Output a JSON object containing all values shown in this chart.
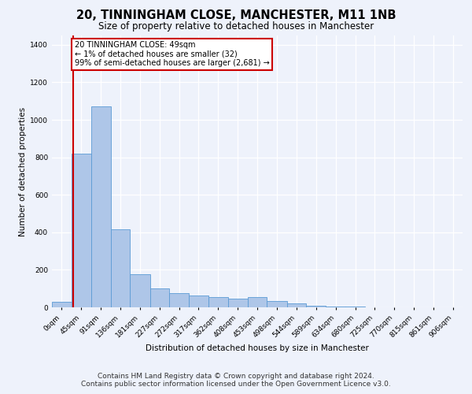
{
  "title": "20, TINNINGHAM CLOSE, MANCHESTER, M11 1NB",
  "subtitle": "Size of property relative to detached houses in Manchester",
  "xlabel": "Distribution of detached houses by size in Manchester",
  "ylabel": "Number of detached properties",
  "bin_labels": [
    "0sqm",
    "45sqm",
    "91sqm",
    "136sqm",
    "181sqm",
    "227sqm",
    "272sqm",
    "317sqm",
    "362sqm",
    "408sqm",
    "453sqm",
    "498sqm",
    "544sqm",
    "589sqm",
    "634sqm",
    "680sqm",
    "725sqm",
    "770sqm",
    "815sqm",
    "861sqm",
    "906sqm"
  ],
  "bin_left_edges": [
    0,
    45,
    91,
    136,
    181,
    227,
    272,
    317,
    362,
    408,
    453,
    498,
    544,
    589,
    634,
    680,
    725,
    770,
    815,
    861,
    906
  ],
  "bin_widths": [
    45,
    46,
    45,
    45,
    46,
    45,
    45,
    45,
    46,
    45,
    45,
    46,
    45,
    45,
    46,
    45,
    45,
    45,
    46,
    45,
    45
  ],
  "bar_heights": [
    30,
    820,
    1070,
    415,
    175,
    100,
    75,
    65,
    55,
    45,
    55,
    35,
    20,
    8,
    4,
    3,
    2,
    1,
    1,
    0,
    0
  ],
  "bar_color": "#aec6e8",
  "bar_edgecolor": "#5b9bd5",
  "property_line_x": 49,
  "property_line_color": "#cc0000",
  "annotation_text": "20 TINNINGHAM CLOSE: 49sqm\n← 1% of detached houses are smaller (32)\n99% of semi-detached houses are larger (2,681) →",
  "annotation_box_color": "#ffffff",
  "annotation_box_edgecolor": "#cc0000",
  "ylim": [
    0,
    1450
  ],
  "yticks": [
    0,
    200,
    400,
    600,
    800,
    1000,
    1200,
    1400
  ],
  "xlim_max": 951,
  "footer_line1": "Contains HM Land Registry data © Crown copyright and database right 2024.",
  "footer_line2": "Contains public sector information licensed under the Open Government Licence v3.0.",
  "background_color": "#eef2fb",
  "grid_color": "#ffffff",
  "title_fontsize": 10.5,
  "subtitle_fontsize": 8.5,
  "axis_label_fontsize": 7.5,
  "tick_fontsize": 6.5,
  "annotation_fontsize": 7,
  "footer_fontsize": 6.5
}
